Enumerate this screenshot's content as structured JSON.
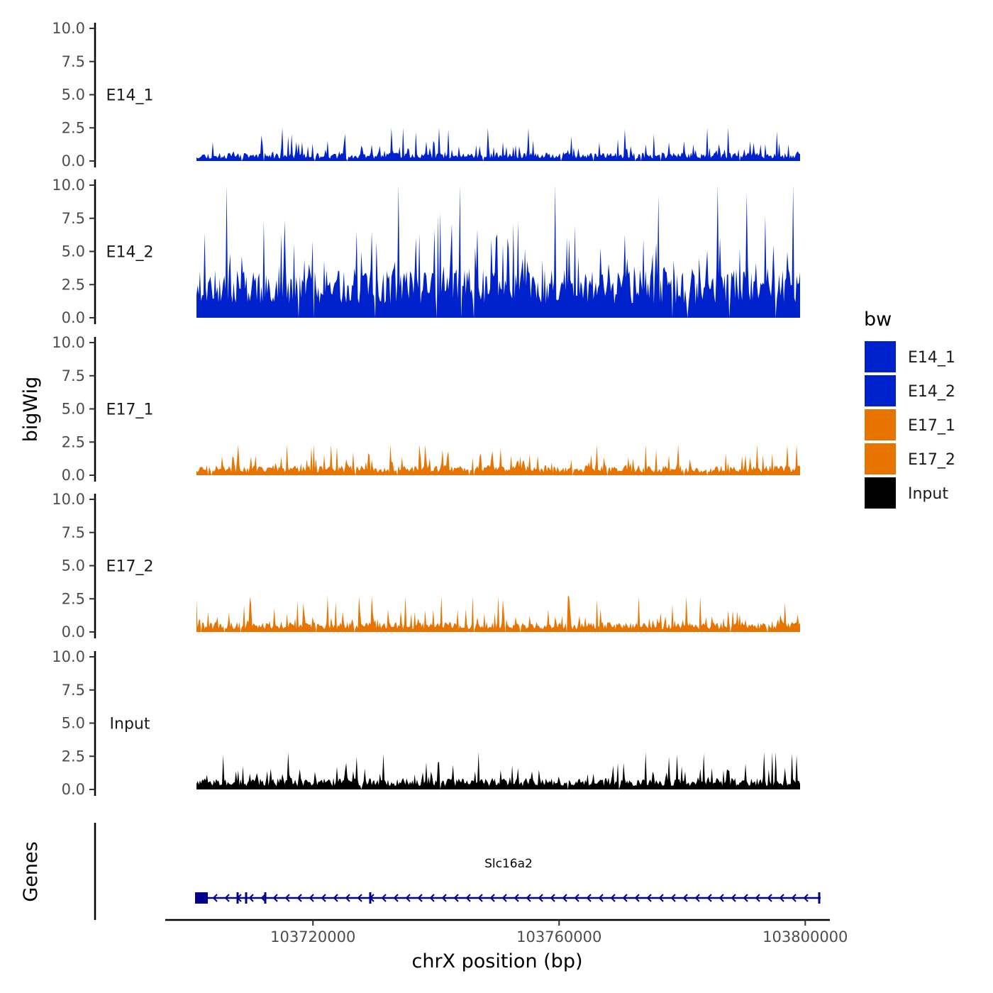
{
  "chart_data": {
    "type": "area",
    "ylabel": "bigWig",
    "xlabel": "chrX position (bp)",
    "ylim": [
      0,
      10
    ],
    "y_ticks": [
      "0.0",
      "2.5",
      "5.0",
      "7.5",
      "10.0"
    ],
    "y_tick_values": [
      0,
      2.5,
      5,
      7.5,
      10
    ],
    "xlim": [
      103696000,
      103804000
    ],
    "x_data_range": [
      103696000,
      103804000
    ],
    "x_ticks": [
      "103720000",
      "103760000",
      "103800000"
    ],
    "x_tick_values": [
      103720000,
      103760000,
      103800000
    ],
    "legend": {
      "title": "bw",
      "position": "right",
      "entries": [
        {
          "label": "E14_1",
          "color": "#0022CC"
        },
        {
          "label": "E14_2",
          "color": "#0022CC"
        },
        {
          "label": "E17_1",
          "color": "#E87400"
        },
        {
          "label": "E17_2",
          "color": "#E87400"
        },
        {
          "label": "Input",
          "color": "#000000"
        }
      ]
    },
    "series": [
      {
        "name": "E14_1",
        "color": "#0022CC",
        "baseline": 0.5,
        "amplitude": 0.9,
        "peak": 2.5,
        "seed": 11
      },
      {
        "name": "E14_2",
        "color": "#0022CC",
        "baseline": 3.0,
        "amplitude": 3.2,
        "peak": 10.0,
        "seed": 23
      },
      {
        "name": "E17_1",
        "color": "#E87400",
        "baseline": 0.6,
        "amplitude": 0.8,
        "peak": 2.3,
        "seed": 37
      },
      {
        "name": "E17_2",
        "color": "#E87400",
        "baseline": 0.6,
        "amplitude": 0.8,
        "peak": 2.7,
        "seed": 41
      },
      {
        "name": "Input",
        "color": "#000000",
        "baseline": 0.7,
        "amplitude": 0.9,
        "peak": 2.8,
        "seed": 53
      }
    ],
    "genes_track": {
      "ylabel": "Genes",
      "genes": [
        {
          "name": "Slc16a2",
          "start": 103696000,
          "end": 103802500,
          "strand": "-",
          "color": "#00008B"
        }
      ]
    }
  }
}
